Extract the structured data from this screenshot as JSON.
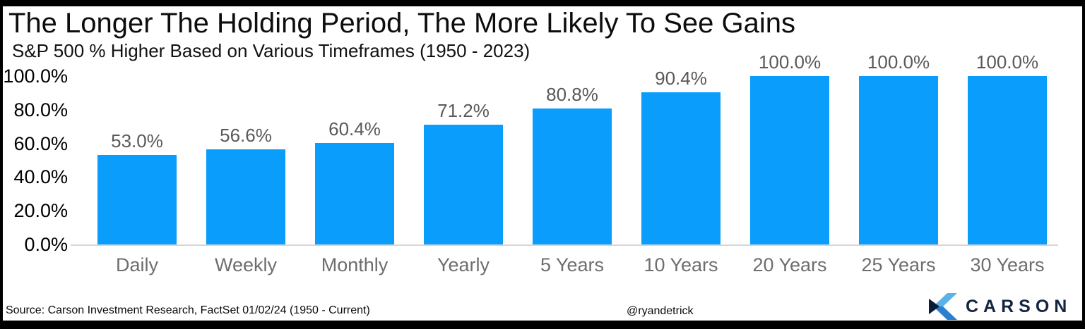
{
  "header": {
    "title": "The Longer The Holding Period, The More Likely To See Gains",
    "subtitle": "S&P 500 % Higher Based on Various Timeframes (1950 - 2023)"
  },
  "chart_data": {
    "type": "bar",
    "title": "The Longer The Holding Period, The More Likely To See Gains",
    "subtitle": "S&P 500 % Higher Based on Various Timeframes (1950 - 2023)",
    "categories": [
      "Daily",
      "Weekly",
      "Monthly",
      "Yearly",
      "5 Years",
      "10 Years",
      "20 Years",
      "25 Years",
      "30 Years"
    ],
    "values": [
      53.0,
      56.6,
      60.4,
      71.2,
      80.8,
      90.4,
      100.0,
      100.0,
      100.0
    ],
    "value_labels": [
      "53.0%",
      "56.6%",
      "60.4%",
      "71.2%",
      "80.8%",
      "90.4%",
      "100.0%",
      "100.0%",
      "100.0%"
    ],
    "xlabel": "",
    "ylabel": "",
    "ylim": [
      0,
      100
    ],
    "yticks": [
      0,
      20,
      40,
      60,
      80,
      100
    ],
    "ytick_labels": [
      "0.0%",
      "20.0%",
      "40.0%",
      "60.0%",
      "80.0%",
      "100.0%"
    ],
    "grid": false,
    "legend": false,
    "bar_color": "#0a9dfc"
  },
  "footer": {
    "source": "Source: Carson Investment Research, FactSet 01/02/24 (1950 - Current)",
    "handle": "@ryandetrick",
    "brand": "CARSON"
  },
  "colors": {
    "bar": "#0a9dfc",
    "ytick_label": "#000000",
    "category_label": "#6e6e6e",
    "value_label": "#595959",
    "baseline": "#d6d6d6",
    "brand_navy": "#152441",
    "logo_light_blue": "#59b3e8",
    "logo_mid_blue": "#2b7fd0",
    "logo_dark_navy": "#0b1e38",
    "frame": "#000000",
    "background": "#ffffff"
  }
}
